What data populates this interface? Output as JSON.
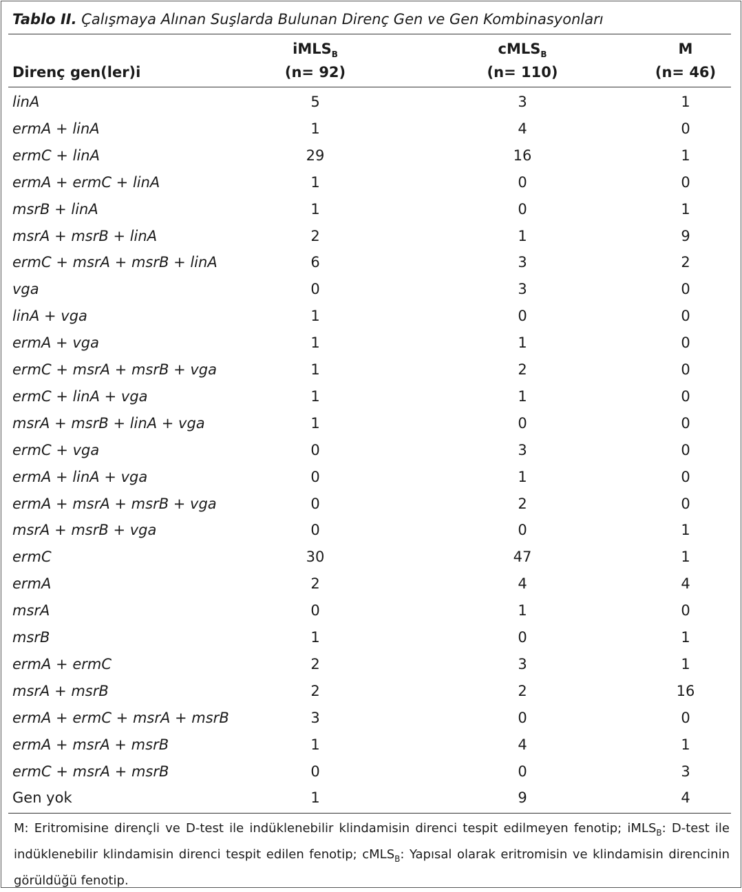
{
  "title": {
    "label": "Tablo II.",
    "text": "Çalışmaya Alınan Suşlarda Bulunan Direnç Gen ve Gen Kombinasyonları"
  },
  "table": {
    "header": {
      "label": "Direnç gen(ler)i",
      "columns": [
        {
          "name": "iMLS",
          "sub": "B",
          "n": "(n= 92)"
        },
        {
          "name": "cMLS",
          "sub": "B",
          "n": "(n= 110)"
        },
        {
          "name": "M",
          "n": "(n= 46)"
        }
      ]
    },
    "rows": [
      {
        "label": "linA",
        "values": [
          5,
          3,
          1
        ]
      },
      {
        "label": "ermA + linA",
        "values": [
          1,
          4,
          0
        ]
      },
      {
        "label": "ermC + linA",
        "values": [
          29,
          16,
          1
        ]
      },
      {
        "label": "ermA + ermC + linA",
        "values": [
          1,
          0,
          0
        ]
      },
      {
        "label": "msrB + linA",
        "values": [
          1,
          0,
          1
        ]
      },
      {
        "label": "msrA + msrB + linA",
        "values": [
          2,
          1,
          9
        ]
      },
      {
        "label": "ermC + msrA + msrB + linA",
        "values": [
          6,
          3,
          2
        ]
      },
      {
        "label": "vga",
        "values": [
          0,
          3,
          0
        ]
      },
      {
        "label": "linA + vga",
        "values": [
          1,
          0,
          0
        ]
      },
      {
        "label": "ermA + vga",
        "values": [
          1,
          1,
          0
        ]
      },
      {
        "label": "ermC + msrA + msrB + vga",
        "values": [
          1,
          2,
          0
        ]
      },
      {
        "label": "ermC + linA + vga",
        "values": [
          1,
          1,
          0
        ]
      },
      {
        "label": "msrA + msrB + linA + vga",
        "values": [
          1,
          0,
          0
        ]
      },
      {
        "label": "ermC + vga",
        "values": [
          0,
          3,
          0
        ]
      },
      {
        "label": "ermA + linA + vga",
        "values": [
          0,
          1,
          0
        ]
      },
      {
        "label": "ermA + msrA + msrB + vga",
        "values": [
          0,
          2,
          0
        ]
      },
      {
        "label": "msrA + msrB + vga",
        "values": [
          0,
          0,
          1
        ]
      },
      {
        "label": "ermC",
        "values": [
          30,
          47,
          1
        ]
      },
      {
        "label": "ermA",
        "values": [
          2,
          4,
          4
        ]
      },
      {
        "label": "msrA",
        "values": [
          0,
          1,
          0
        ]
      },
      {
        "label": "msrB",
        "values": [
          1,
          0,
          1
        ]
      },
      {
        "label": "ermA + ermC",
        "values": [
          2,
          3,
          1
        ]
      },
      {
        "label": "msrA + msrB",
        "values": [
          2,
          2,
          16
        ]
      },
      {
        "label": "ermA + ermC + msrA + msrB",
        "values": [
          3,
          0,
          0
        ]
      },
      {
        "label": "ermA + msrA + msrB",
        "values": [
          1,
          4,
          1
        ]
      },
      {
        "label": "ermC + msrA + msrB",
        "values": [
          0,
          0,
          3
        ]
      },
      {
        "label": "Gen yok",
        "values": [
          1,
          9,
          4
        ]
      }
    ]
  },
  "footnote": [
    {
      "text": "M: Eritromisine dirençli ve D-test ile indüklenebilir klindamisin direnci tespit edilmeyen fenotip; iMLS"
    },
    {
      "text": "B",
      "sub": true
    },
    {
      "text": ": D-test ile indüklenebilir klindamisin direnci tespit edilen fenotip; cMLS"
    },
    {
      "text": "B",
      "sub": true
    },
    {
      "text": ": Yapısal olarak eritromisin ve klindamisin direncinin görüldüğü fenotip."
    }
  ]
}
